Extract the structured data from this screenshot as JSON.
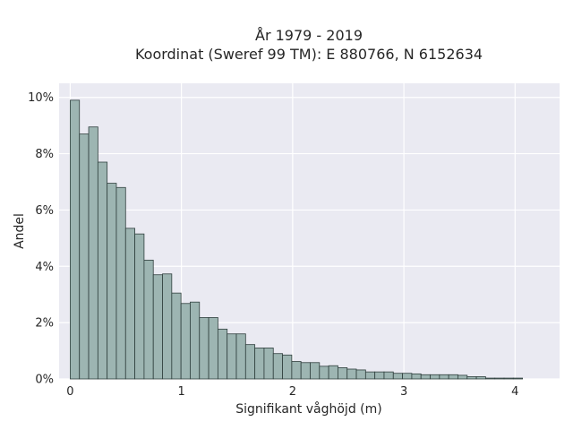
{
  "chart_data": {
    "type": "bar",
    "title": "År 1979 - 2019",
    "subtitle": "Koordinat (Sweref 99 TM): E 880766, N 6152634",
    "xlabel": "Signifikant våghöjd (m)",
    "ylabel": "Andel",
    "xlim": [
      -0.1,
      4.4
    ],
    "ylim": [
      0,
      10.5
    ],
    "x_ticks": [
      {
        "value": 0,
        "label": "0"
      },
      {
        "value": 1,
        "label": "1"
      },
      {
        "value": 2,
        "label": "2"
      },
      {
        "value": 3,
        "label": "3"
      },
      {
        "value": 4,
        "label": "4"
      }
    ],
    "y_ticks": [
      {
        "value": 0,
        "label": "0%"
      },
      {
        "value": 2,
        "label": "2%"
      },
      {
        "value": 4,
        "label": "4%"
      },
      {
        "value": 6,
        "label": "6%"
      },
      {
        "value": 8,
        "label": "8%"
      },
      {
        "value": 10,
        "label": "10%"
      }
    ],
    "bin_start": 0.0,
    "bin_width": 0.083,
    "values": [
      9.9,
      8.7,
      8.95,
      7.7,
      6.95,
      6.8,
      5.35,
      5.15,
      4.22,
      3.7,
      3.73,
      3.05,
      2.68,
      2.73,
      2.18,
      2.18,
      1.77,
      1.6,
      1.6,
      1.22,
      1.1,
      1.1,
      0.9,
      0.85,
      0.62,
      0.58,
      0.58,
      0.45,
      0.47,
      0.4,
      0.35,
      0.32,
      0.25,
      0.25,
      0.25,
      0.2,
      0.2,
      0.18,
      0.15,
      0.15,
      0.15,
      0.15,
      0.13,
      0.08,
      0.08,
      0.03,
      0.03,
      0.03,
      0.03
    ],
    "grid": true,
    "legend": "none",
    "colors": {
      "plot_background": "#eaeaf2",
      "bar_fill": "#9db5b2",
      "bar_edge": "#2f3f3d",
      "grid": "#ffffff"
    }
  }
}
